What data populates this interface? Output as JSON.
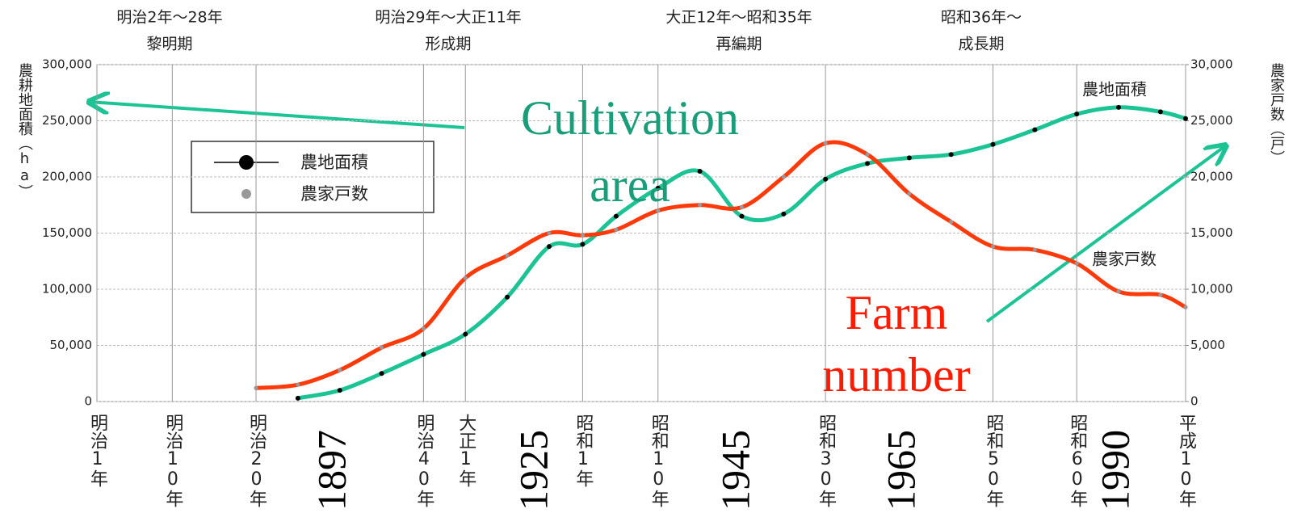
{
  "chart_data": {
    "type": "line",
    "headers": [
      {
        "range": "明治2年～28年",
        "period": "黎明期"
      },
      {
        "range": "明治29年～大正11年",
        "period": "形成期"
      },
      {
        "range": "大正12年～昭和35年",
        "period": "再編期"
      },
      {
        "range": "昭和36年～",
        "period": "成長期"
      }
    ],
    "y_label": "農耕地面積（ha）",
    "y2_label": "農家戸数（戸）",
    "xlim": [
      1868,
      1998
    ],
    "xticks": [
      {
        "value": 1868,
        "label": "明治1年"
      },
      {
        "value": 1877,
        "label": "明治10年"
      },
      {
        "value": 1887,
        "label": "明治20年"
      },
      {
        "value": 1907,
        "label": "明治40年"
      },
      {
        "value": 1912,
        "label": "大正1年"
      },
      {
        "value": 1926,
        "label": "昭和1年"
      },
      {
        "value": 1935,
        "label": "昭和10年"
      },
      {
        "value": 1955,
        "label": "昭和30年"
      },
      {
        "value": 1975,
        "label": "昭和50年"
      },
      {
        "value": 1985,
        "label": "昭和60年"
      },
      {
        "value": 1998,
        "label": "平成10年"
      }
    ],
    "ylim": [
      0,
      300000
    ],
    "yticks": [
      0,
      {
        "value": 50000,
        "label": "50,000"
      },
      {
        "value": 100000,
        "label": "100,000"
      },
      {
        "value": 150000,
        "label": "150,000"
      },
      {
        "value": 200000,
        "label": "200,000"
      },
      {
        "value": 250000,
        "label": "250,000"
      },
      {
        "value": 300000,
        "label": "300,000"
      }
    ],
    "y2lim": [
      0,
      30000
    ],
    "y2ticks": [
      0,
      {
        "value": 5000,
        "label": "5,000"
      },
      {
        "value": 10000,
        "label": "10,000"
      },
      {
        "value": 15000,
        "label": "15,000"
      },
      {
        "value": 20000,
        "label": "20,000"
      },
      {
        "value": 25000,
        "label": "25,000"
      },
      {
        "value": 30000,
        "label": "30,000"
      }
    ],
    "grid": true,
    "series": [
      {
        "name": "農地面積",
        "color": "#1cc495",
        "marker_color": "#000000",
        "x": [
          1892,
          1897,
          1902,
          1907,
          1912,
          1917,
          1922,
          1926,
          1930,
          1935,
          1940,
          1945,
          1950,
          1955,
          1960,
          1965,
          1970,
          1975,
          1980,
          1985,
          1990,
          1995,
          1998
        ],
        "values": [
          3000,
          10000,
          25000,
          42000,
          60000,
          93000,
          138000,
          140000,
          165000,
          190000,
          205000,
          165000,
          167000,
          198000,
          212000,
          217000,
          220000,
          229000,
          242000,
          256000,
          262000,
          258000,
          252000
        ]
      },
      {
        "name": "農家戸数",
        "axis": "y2",
        "color": "#ff3a0a",
        "marker_color": "#999999",
        "x": [
          1887,
          1892,
          1897,
          1902,
          1907,
          1912,
          1917,
          1922,
          1926,
          1930,
          1935,
          1940,
          1945,
          1950,
          1955,
          1960,
          1965,
          1970,
          1975,
          1980,
          1985,
          1990,
          1995,
          1998
        ],
        "values": [
          1200,
          1500,
          2800,
          4800,
          6500,
          11000,
          13000,
          15000,
          14800,
          15300,
          17000,
          17500,
          17300,
          20000,
          23000,
          22000,
          18500,
          16000,
          13800,
          13500,
          12300,
          9800,
          9500,
          8400
        ]
      }
    ],
    "inline_labels": [
      "農地面積",
      "農家戸数"
    ],
    "annotations": [
      {
        "lines": [
          "Cultivation",
          "area"
        ],
        "color": "#1a9e7a"
      },
      {
        "lines": [
          "Farm",
          "number"
        ],
        "color": "#ff1a00"
      }
    ],
    "year_labels": [
      "1897",
      "1925",
      "1945",
      "1965",
      "1990"
    ]
  }
}
